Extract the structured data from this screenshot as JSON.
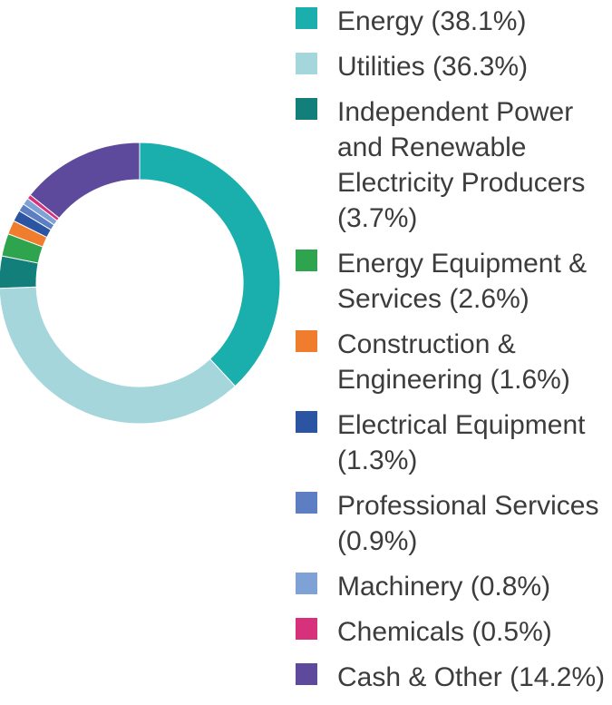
{
  "chart_data": {
    "type": "pie",
    "style": "donut",
    "legend_position": "right",
    "slices": [
      {
        "label": "Energy (38.1%)",
        "value": 38.1,
        "color": "#1aafac"
      },
      {
        "label": "Utilities (36.3%)",
        "value": 36.3,
        "color": "#a5d6dc"
      },
      {
        "label": "Independent Power and Renewable Electricity Producers (3.7%)",
        "value": 3.7,
        "color": "#137f7a"
      },
      {
        "label": "Energy Equipment & Services (2.6%)",
        "value": 2.6,
        "color": "#2ea44f"
      },
      {
        "label": "Construction & Engineering (1.6%)",
        "value": 1.6,
        "color": "#ef7d2d"
      },
      {
        "label": "Electrical Equipment (1.3%)",
        "value": 1.3,
        "color": "#2b54a3"
      },
      {
        "label": "Professional Services (0.9%)",
        "value": 0.9,
        "color": "#5d7ec2"
      },
      {
        "label": "Machinery (0.8%)",
        "value": 0.8,
        "color": "#7fa2d6"
      },
      {
        "label": "Chemicals (0.5%)",
        "value": 0.5,
        "color": "#d6317a"
      },
      {
        "label": "Cash & Other (14.2%)",
        "value": 14.2,
        "color": "#5e4a9c"
      }
    ]
  }
}
